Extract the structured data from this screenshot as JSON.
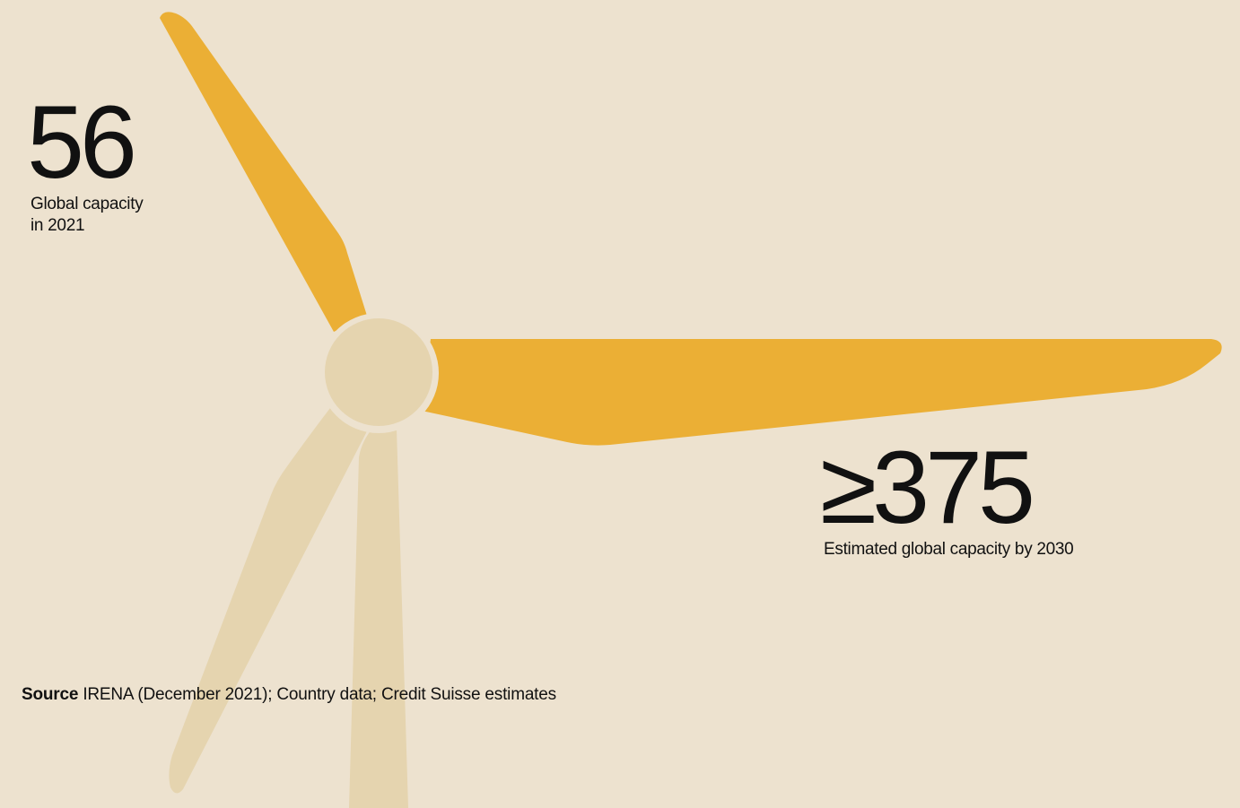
{
  "colors": {
    "background": "#ede2cf",
    "blade_highlight": "#ebaf35",
    "blade_muted": "#e5d4af",
    "hub": "#e5d4af",
    "text": "#111111"
  },
  "stat_2021": {
    "value": "56",
    "label_line1": "Global capacity",
    "label_line2": "in 2021"
  },
  "stat_2030": {
    "value": "≥375",
    "label": "Estimated global capacity by 2030"
  },
  "source": {
    "label": "Source",
    "text": "IRENA (December 2021); Country data; Credit Suisse estimates"
  }
}
